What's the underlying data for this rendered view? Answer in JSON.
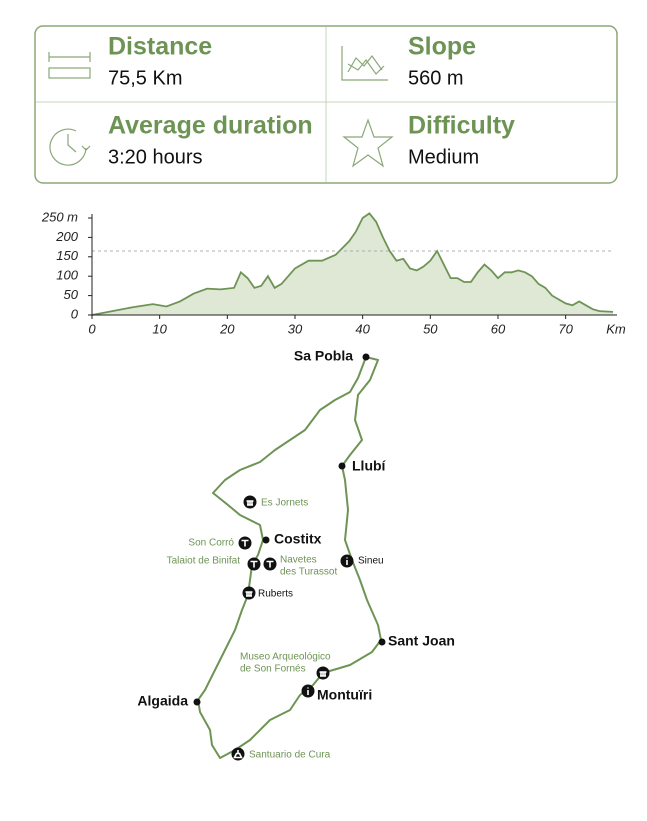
{
  "stats": [
    {
      "label": "Distance",
      "value": "75,5 Km"
    },
    {
      "label": "Slope",
      "value": "560 m"
    },
    {
      "label": "Average duration",
      "value": "3:20 hours"
    },
    {
      "label": "Difficulty",
      "value": "Medium"
    }
  ],
  "chart_data": {
    "type": "area",
    "x": [
      0,
      3,
      6,
      9,
      11,
      13,
      15,
      17,
      19,
      21,
      22,
      23,
      24,
      25,
      26,
      27,
      28,
      30,
      32,
      34,
      36,
      38,
      39,
      40,
      41,
      42,
      43,
      44,
      45,
      46,
      47,
      48,
      49,
      50,
      51,
      52,
      53,
      54,
      55,
      56,
      57,
      58,
      59,
      60,
      61,
      62,
      63,
      64,
      65,
      66,
      67,
      68,
      69,
      70,
      71,
      72,
      73,
      74,
      75,
      77
    ],
    "values": [
      0,
      10,
      20,
      28,
      22,
      35,
      55,
      68,
      66,
      70,
      110,
      95,
      70,
      75,
      100,
      70,
      80,
      120,
      140,
      140,
      155,
      190,
      215,
      250,
      262,
      240,
      200,
      165,
      140,
      145,
      120,
      115,
      125,
      140,
      165,
      130,
      95,
      95,
      85,
      85,
      110,
      130,
      115,
      95,
      110,
      110,
      115,
      110,
      100,
      80,
      70,
      50,
      40,
      30,
      25,
      35,
      25,
      15,
      10,
      8
    ],
    "color": "#6e9455",
    "fill": "#dfe7d5",
    "xlim": [
      0,
      77
    ],
    "ylim": [
      0,
      250
    ],
    "xticks": [
      0,
      10,
      20,
      30,
      40,
      50,
      60,
      70
    ],
    "yticks": [
      0,
      50,
      100,
      150,
      200,
      {
        "value": 250,
        "label": "250 m"
      }
    ],
    "x_label": "Km",
    "reference_line": 165
  },
  "map": {
    "places": [
      {
        "lines": [
          "Sa Pobla"
        ]
      },
      {
        "lines": [
          "Llubí"
        ]
      },
      {
        "lines": [
          "Es Jornets"
        ]
      },
      {
        "lines": [
          "Son Corró"
        ]
      },
      {
        "lines": [
          "Costitx"
        ]
      },
      {
        "lines": [
          "Talaiot de Binifat"
        ]
      },
      {
        "lines": [
          "Navetes",
          "des Turassot"
        ]
      },
      {
        "lines": [
          "Sineu"
        ]
      },
      {
        "lines": [
          "Ruberts"
        ]
      },
      {
        "lines": [
          "Sant Joan"
        ]
      },
      {
        "lines": [
          "Museo Arqueológico",
          "de Son Fornés"
        ]
      },
      {
        "lines": [
          "Montuïri"
        ]
      },
      {
        "lines": [
          "Algaida"
        ]
      },
      {
        "lines": [
          "Santuario de Cura"
        ]
      }
    ]
  }
}
